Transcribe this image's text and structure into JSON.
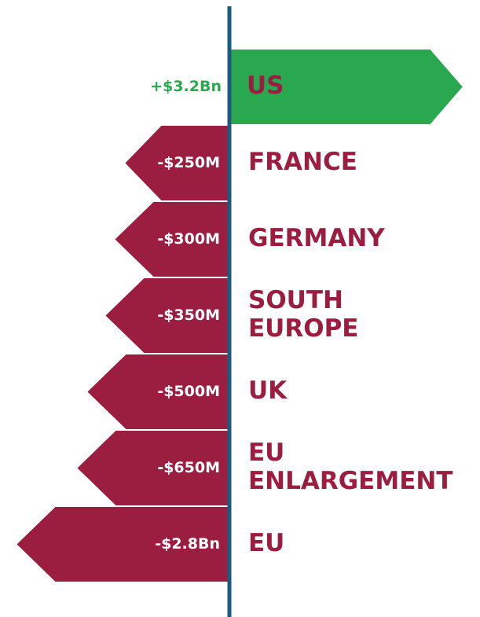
{
  "items": [
    {
      "name": [
        "US"
      ],
      "value_label": "+$3.2Bn",
      "direction": "up"
    },
    {
      "name": [
        "FRANCE"
      ],
      "value_label": "-$250M",
      "direction": "down"
    },
    {
      "name": [
        "GERMANY"
      ],
      "value_label": "-$300M",
      "direction": "down"
    },
    {
      "name": [
        "SOUTH",
        "EUROPE"
      ],
      "value_label": "-$350M",
      "direction": "down"
    },
    {
      "name": [
        "UK"
      ],
      "value_label": "-$500M",
      "direction": "down"
    },
    {
      "name": [
        "EU",
        "ENLARGEMENT"
      ],
      "value_label": "-$650M",
      "direction": "down"
    },
    {
      "name": [
        "EU"
      ],
      "value_label": "-$2.8Bn",
      "direction": "down"
    }
  ]
}
